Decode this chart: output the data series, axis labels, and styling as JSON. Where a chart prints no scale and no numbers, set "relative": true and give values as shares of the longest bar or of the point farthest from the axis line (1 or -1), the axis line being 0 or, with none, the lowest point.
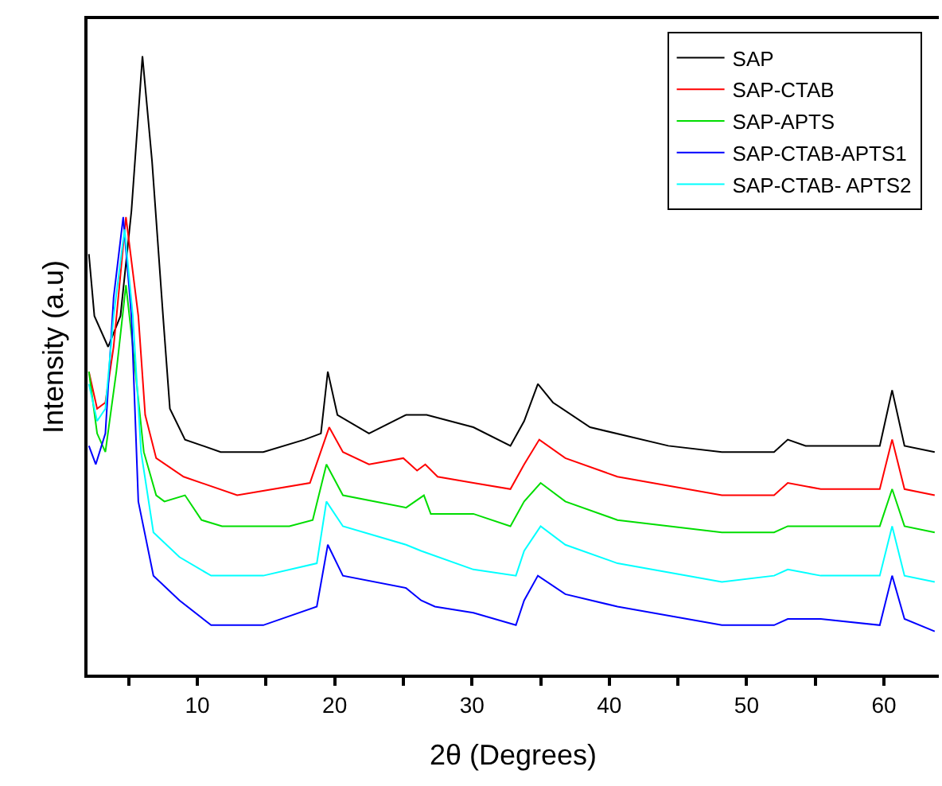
{
  "chart_data": {
    "type": "line",
    "relative": true,
    "xlabel": "2θ (Degrees)",
    "ylabel": "Intensity (a.u)",
    "xlim": [
      2,
      64
    ],
    "xticks": [
      {
        "value": 5,
        "label": null
      },
      10,
      {
        "value": 15,
        "label": null
      },
      20,
      {
        "value": 25,
        "label": null
      },
      30,
      {
        "value": 35,
        "label": null
      },
      40,
      {
        "value": 45,
        "label": null
      },
      50,
      {
        "value": 55,
        "label": null
      },
      60
    ],
    "legend": "top right",
    "grid": false,
    "marker": "none",
    "line_style": "solid",
    "series": [
      {
        "name": "SAP",
        "color": "#000000",
        "x": [
          2.1,
          2.5,
          3.5,
          4.4,
          5.2,
          6.0,
          6.7,
          7.5,
          8.0,
          9.1,
          11.7,
          14.8,
          17.8,
          19,
          19.5,
          20.2,
          22.5,
          25.2,
          26.7,
          30.1,
          32.8,
          33.8,
          34.8,
          35.9,
          38.6,
          44.3,
          48.2,
          52,
          53,
          54.3,
          59.7,
          60.6,
          61.5,
          63.7
        ],
        "values": [
          0.68,
          0.58,
          0.53,
          0.58,
          0.75,
          1.0,
          0.83,
          0.58,
          0.43,
          0.38,
          0.36,
          0.36,
          0.38,
          0.39,
          0.49,
          0.42,
          0.39,
          0.42,
          0.42,
          0.4,
          0.37,
          0.41,
          0.47,
          0.44,
          0.4,
          0.37,
          0.36,
          0.36,
          0.38,
          0.37,
          0.37,
          0.46,
          0.37,
          0.36
        ]
      },
      {
        "name": "SAP-CTAB",
        "color": "#ff0000",
        "x": [
          2.1,
          2.7,
          3.3,
          3.9,
          4.8,
          5.7,
          6.2,
          7.0,
          9,
          12.9,
          18.2,
          19.6,
          20.6,
          22.5,
          25,
          26,
          26.6,
          27.5,
          30.1,
          32.8,
          33.8,
          34.9,
          36.8,
          40.6,
          48.2,
          52,
          53,
          55.4,
          59.7,
          60.6,
          61.5,
          63.7
        ],
        "values": [
          0.49,
          0.43,
          0.44,
          0.53,
          0.74,
          0.58,
          0.42,
          0.35,
          0.32,
          0.29,
          0.31,
          0.4,
          0.36,
          0.34,
          0.35,
          0.33,
          0.34,
          0.32,
          0.31,
          0.3,
          0.34,
          0.38,
          0.35,
          0.32,
          0.29,
          0.29,
          0.31,
          0.3,
          0.3,
          0.38,
          0.3,
          0.29
        ]
      },
      {
        "name": "SAP-APTS",
        "color": "#00dd00",
        "x": [
          2.1,
          2.7,
          3.3,
          4.1,
          4.8,
          5.3,
          6.1,
          7.0,
          7.6,
          9.1,
          10.3,
          11.8,
          14.4,
          16.7,
          18.4,
          19.4,
          20.6,
          25.2,
          26.5,
          27,
          30.1,
          32.8,
          33.8,
          35,
          36.8,
          40.6,
          48.2,
          52,
          53,
          55.4,
          59.7,
          60.6,
          61.5,
          63.7
        ],
        "values": [
          0.49,
          0.39,
          0.36,
          0.49,
          0.63,
          0.53,
          0.36,
          0.29,
          0.28,
          0.29,
          0.25,
          0.24,
          0.24,
          0.24,
          0.25,
          0.34,
          0.29,
          0.27,
          0.29,
          0.26,
          0.26,
          0.24,
          0.28,
          0.31,
          0.28,
          0.25,
          0.23,
          0.23,
          0.24,
          0.24,
          0.24,
          0.3,
          0.24,
          0.23
        ]
      },
      {
        "name": "SAP-CTAB-APTS1",
        "color": "#0000ff",
        "x": [
          2.1,
          2.6,
          3.3,
          3.9,
          4.6,
          5.2,
          5.7,
          6.8,
          8.7,
          11,
          14.8,
          18.7,
          19.5,
          20.6,
          25.2,
          26.3,
          27.3,
          30.1,
          33.2,
          33.8,
          34.8,
          36.8,
          40.6,
          48.2,
          52,
          53,
          55.4,
          59.7,
          60.6,
          61.5,
          63.7
        ],
        "values": [
          0.37,
          0.34,
          0.39,
          0.61,
          0.74,
          0.58,
          0.28,
          0.16,
          0.12,
          0.08,
          0.08,
          0.11,
          0.21,
          0.16,
          0.14,
          0.12,
          0.11,
          0.1,
          0.08,
          0.12,
          0.16,
          0.13,
          0.11,
          0.08,
          0.08,
          0.09,
          0.09,
          0.08,
          0.16,
          0.09,
          0.07
        ]
      },
      {
        "name": "SAP-CTAB- APTS2",
        "color": "#00ffff",
        "x": [
          2.1,
          2.7,
          3.3,
          3.9,
          4.7,
          5.3,
          5.9,
          6.8,
          8.7,
          11,
          14.8,
          18.7,
          19.4,
          20.6,
          25.2,
          26.3,
          30.1,
          33.2,
          33.8,
          35,
          36.8,
          40.6,
          48.2,
          52,
          53,
          55.4,
          59.7,
          60.6,
          61.5,
          63.7
        ],
        "values": [
          0.47,
          0.41,
          0.43,
          0.58,
          0.72,
          0.58,
          0.36,
          0.23,
          0.19,
          0.16,
          0.16,
          0.18,
          0.28,
          0.24,
          0.21,
          0.2,
          0.17,
          0.16,
          0.2,
          0.24,
          0.21,
          0.18,
          0.15,
          0.16,
          0.17,
          0.16,
          0.16,
          0.24,
          0.16,
          0.15
        ]
      }
    ]
  }
}
